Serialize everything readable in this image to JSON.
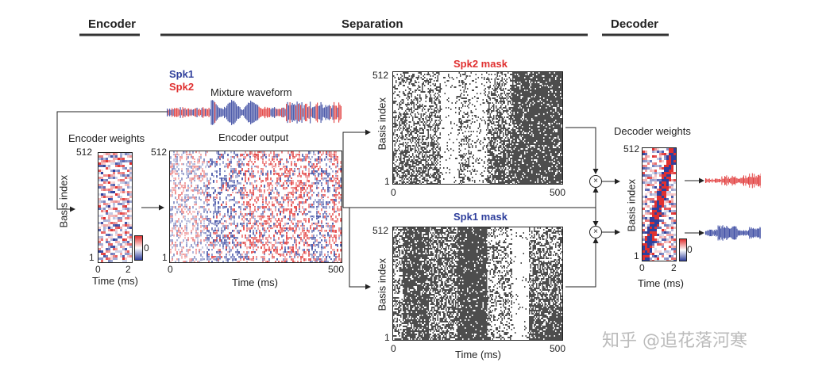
{
  "sections": {
    "encoder": "Encoder",
    "separation": "Separation",
    "decoder": "Decoder"
  },
  "legend": {
    "spk1": "Spk1",
    "spk2": "Spk2",
    "mixture": "Mixture waveform"
  },
  "encoder_weights": {
    "title": "Encoder weights",
    "ylabel": "Basis index",
    "y_top": "512",
    "y_bottom": "1",
    "x_start": "0",
    "x_end": "2",
    "xlabel": "Time (ms)",
    "colorbar_label": "0"
  },
  "encoder_output": {
    "title": "Encoder output",
    "y_top": "512",
    "y_bottom": "1",
    "x_start": "0",
    "x_end": "500",
    "xlabel": "Time (ms)"
  },
  "spk2_mask": {
    "title": "Spk2 mask",
    "ylabel": "Basis index",
    "y_top": "512",
    "y_bottom": "1",
    "x_start": "0",
    "x_end": "500"
  },
  "spk1_mask": {
    "title": "Spk1 mask",
    "ylabel": "Basis index",
    "y_top": "512",
    "y_bottom": "1",
    "x_start": "0",
    "x_end": "500",
    "xlabel": "Time (ms)"
  },
  "decoder_weights": {
    "title": "Decoder weights",
    "ylabel": "Basis index",
    "y_top": "512",
    "y_bottom": "1",
    "x_start": "0",
    "x_end": "2",
    "xlabel": "Time (ms)",
    "colorbar_label": "0"
  },
  "multiply_symbol": "×",
  "watermark": "知乎 @追花落河寒",
  "colors": {
    "red": "#e03030",
    "blue": "#2f3f9c",
    "mask": "#3a3a3a"
  }
}
